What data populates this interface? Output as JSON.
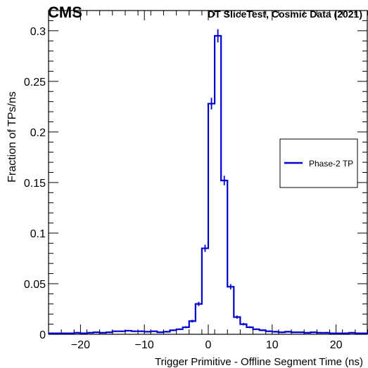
{
  "header": {
    "experiment": "CMS",
    "caption": "DT SliceTest, Cosmic Data (2021)"
  },
  "chart_data": {
    "type": "histogram",
    "title": "",
    "xlabel": "Trigger Primitive - Offline Segment Time (ns)",
    "ylabel": "Fraction of TPs/ns",
    "xlim": [
      -25,
      25
    ],
    "ylim": [
      0,
      0.32
    ],
    "x_ticks": [
      -20,
      -10,
      0,
      10,
      20
    ],
    "x_tick_labels": [
      "−20",
      "−10",
      "0",
      "10",
      "20"
    ],
    "y_ticks": [
      0,
      0.05,
      0.1,
      0.15,
      0.2,
      0.25,
      0.3
    ],
    "y_tick_labels": [
      "0",
      "0.05",
      "0.1",
      "0.15",
      "0.2",
      "0.25",
      "0.3"
    ],
    "legend": {
      "position": "right",
      "entries": [
        "Phase-2 TP"
      ]
    },
    "colors": {
      "series": "#0000cc",
      "axis": "#000000"
    },
    "bin_width_ns": 1,
    "series": [
      {
        "name": "Phase-2 TP",
        "bin_edges": [
          -25,
          -24,
          -23,
          -22,
          -21,
          -20,
          -19,
          -18,
          -17,
          -16,
          -15,
          -14,
          -13,
          -12,
          -11,
          -10,
          -9,
          -8,
          -7,
          -6,
          -5,
          -4,
          -3,
          -2,
          -1,
          0,
          1,
          2,
          3,
          4,
          5,
          6,
          7,
          8,
          9,
          10,
          11,
          12,
          13,
          14,
          15,
          16,
          17,
          18,
          19,
          20,
          21,
          22,
          23,
          24,
          25
        ],
        "values": [
          0.001,
          0.001,
          0.001,
          0.001,
          0.0015,
          0.001,
          0.0015,
          0.002,
          0.0015,
          0.002,
          0.003,
          0.003,
          0.0035,
          0.003,
          0.003,
          0.0025,
          0.003,
          0.002,
          0.0025,
          0.004,
          0.005,
          0.007,
          0.013,
          0.03,
          0.085,
          0.228,
          0.295,
          0.152,
          0.047,
          0.017,
          0.01,
          0.007,
          0.005,
          0.004,
          0.003,
          0.0025,
          0.002,
          0.0025,
          0.002,
          0.002,
          0.0015,
          0.002,
          0.0015,
          0.0015,
          0.001,
          0.001,
          0.001,
          0.0015,
          0.001,
          0.001
        ]
      }
    ]
  }
}
